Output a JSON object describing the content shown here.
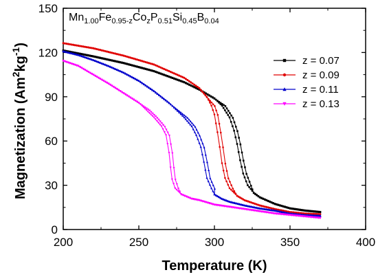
{
  "chart_data": {
    "type": "line",
    "title": "",
    "annotation": {
      "parts": [
        {
          "t": "Mn",
          "sub": false
        },
        {
          "t": "1.00",
          "sub": true
        },
        {
          "t": "Fe",
          "sub": false
        },
        {
          "t": "0.95-z",
          "sub": true
        },
        {
          "t": "Co",
          "sub": false
        },
        {
          "t": "z",
          "sub": true
        },
        {
          "t": "P",
          "sub": false
        },
        {
          "t": "0.51",
          "sub": true
        },
        {
          "t": "Si",
          "sub": false
        },
        {
          "t": "0.45",
          "sub": true
        },
        {
          "t": "B",
          "sub": false
        },
        {
          "t": "0.04",
          "sub": true
        }
      ]
    },
    "xlabel": "Temperature (K)",
    "ylabel": {
      "main": "Magnetization (Am",
      "sup1": "2",
      "mid": "kg",
      "sup2": "-1",
      "end": ")"
    },
    "xlim": [
      200,
      400
    ],
    "ylim": [
      0,
      150
    ],
    "xticks": [
      "200",
      "250",
      "300",
      "350",
      "400"
    ],
    "yticks": [
      "0",
      "30",
      "60",
      "90",
      "120",
      "150"
    ],
    "grid": false,
    "legend_position": "right",
    "series": [
      {
        "name": "z = 0.07",
        "color": "#000000",
        "marker": "square",
        "points": [
          [
            200,
            121.5
          ],
          [
            220,
            117.5
          ],
          [
            240,
            113
          ],
          [
            260,
            107.5
          ],
          [
            280,
            100
          ],
          [
            290,
            95
          ],
          [
            300,
            89
          ],
          [
            305,
            84
          ],
          [
            310,
            76
          ],
          [
            313,
            67
          ],
          [
            315,
            58
          ],
          [
            317,
            47
          ],
          [
            319,
            38
          ],
          [
            322,
            30
          ],
          [
            326,
            25
          ],
          [
            330,
            22
          ],
          [
            340,
            17.5
          ],
          [
            350,
            14.5
          ],
          [
            360,
            13
          ],
          [
            370,
            12
          ]
        ]
      },
      {
        "name": "z = 0.09",
        "color": "#e00000",
        "marker": "circle",
        "points": [
          [
            200,
            126.5
          ],
          [
            220,
            123
          ],
          [
            240,
            118
          ],
          [
            260,
            112
          ],
          [
            280,
            103
          ],
          [
            290,
            96
          ],
          [
            295,
            90
          ],
          [
            298,
            84
          ],
          [
            300,
            78
          ],
          [
            302,
            66
          ],
          [
            303.5,
            56
          ],
          [
            305,
            45
          ],
          [
            307,
            35
          ],
          [
            310,
            28
          ],
          [
            315,
            23
          ],
          [
            320,
            20
          ],
          [
            330,
            16.5
          ],
          [
            340,
            14
          ],
          [
            350,
            12
          ],
          [
            360,
            11
          ],
          [
            370,
            10.5
          ]
        ]
      },
      {
        "name": "z = 0.11",
        "color": "#0000cc",
        "marker": "triangle-up",
        "points": [
          [
            200,
            121
          ],
          [
            210,
            118.5
          ],
          [
            220,
            115
          ],
          [
            230,
            111
          ],
          [
            240,
            106.5
          ],
          [
            250,
            101
          ],
          [
            260,
            94
          ],
          [
            270,
            86
          ],
          [
            280,
            76
          ],
          [
            285,
            70
          ],
          [
            288,
            64
          ],
          [
            291,
            56
          ],
          [
            293,
            46
          ],
          [
            295,
            35
          ],
          [
            298,
            28
          ],
          [
            300,
            24
          ],
          [
            305,
            21
          ],
          [
            310,
            19
          ],
          [
            320,
            16.5
          ],
          [
            330,
            14.5
          ],
          [
            340,
            13
          ],
          [
            350,
            11
          ],
          [
            360,
            10
          ],
          [
            370,
            9.5
          ]
        ]
      },
      {
        "name": "z = 0.13",
        "color": "#ff00ff",
        "marker": "triangle-down",
        "points": [
          [
            200,
            114.5
          ],
          [
            210,
            111
          ],
          [
            220,
            105
          ],
          [
            230,
            99
          ],
          [
            240,
            92.5
          ],
          [
            250,
            86
          ],
          [
            255,
            81
          ],
          [
            260,
            76
          ],
          [
            265,
            70
          ],
          [
            268,
            64
          ],
          [
            270,
            52
          ],
          [
            271,
            42
          ],
          [
            272,
            34
          ],
          [
            274,
            28
          ],
          [
            278,
            24
          ],
          [
            285,
            21
          ],
          [
            290,
            20
          ],
          [
            300,
            17
          ],
          [
            310,
            15.5
          ],
          [
            320,
            14
          ],
          [
            330,
            12.5
          ],
          [
            340,
            11
          ],
          [
            350,
            10
          ],
          [
            360,
            9
          ],
          [
            370,
            8
          ]
        ]
      }
    ]
  }
}
